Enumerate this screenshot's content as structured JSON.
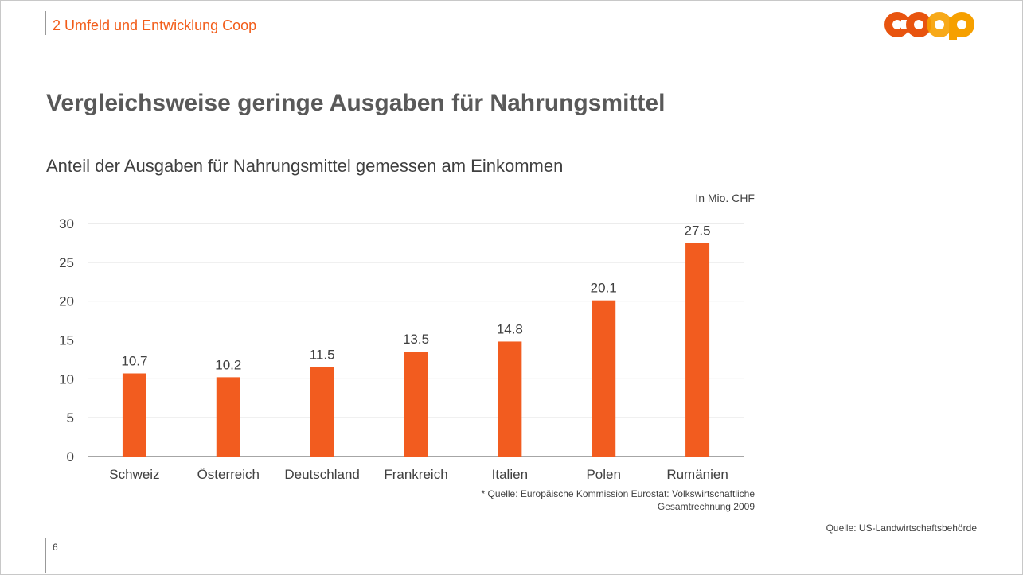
{
  "header": {
    "section": "2 Umfeld und Entwicklung Coop",
    "logo_text": "coop"
  },
  "title": "Vergleichsweise geringe Ausgaben für Nahrungsmittel",
  "subtitle": "Anteil der Ausgaben für Nahrungsmittel gemessen am Einkommen",
  "footnote": {
    "line1": "*  Quelle: Europäische Kommission Eurostat: Volkswirtschaftliche",
    "line2": "Gesamtrechnung 2009"
  },
  "source": "Quelle: US-Landwirtschaftsbehörde",
  "page_number": "6",
  "colors": {
    "accent": "#f25c19",
    "bar": "#f25c1f",
    "logo_orange_dark": "#e8540f",
    "logo_orange_light": "#f6a000"
  },
  "chart_data": {
    "type": "bar",
    "unit_label": "In Mio. CHF",
    "categories": [
      "Schweiz",
      "Österreich",
      "Deutschland",
      "Frankreich",
      "Italien",
      "Polen",
      "Rumänien"
    ],
    "values": [
      10.7,
      10.2,
      11.5,
      13.5,
      14.8,
      20.1,
      27.5
    ],
    "data_labels": [
      "10.7",
      "10.2",
      "11.5",
      "13.5",
      "14.8",
      "20.1",
      "27.5"
    ],
    "ylim": [
      0,
      30
    ],
    "yticks": [
      0,
      5,
      10,
      15,
      20,
      25,
      30
    ],
    "grid": true,
    "legend": "none"
  }
}
